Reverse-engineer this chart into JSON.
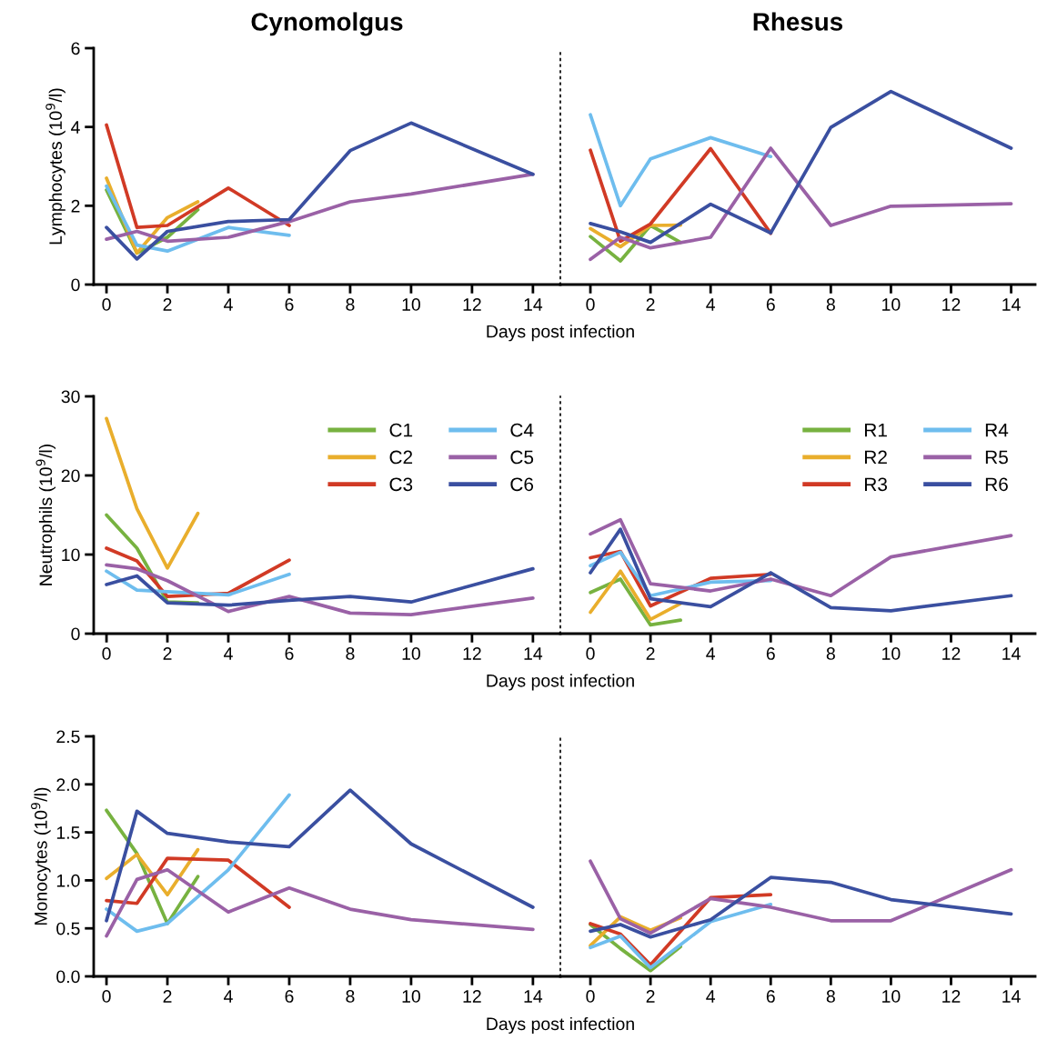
{
  "chart_data": [
    {
      "type": "line",
      "title": "Cynomolgus",
      "ylabel": "Lymphocytes (10$^{9}$/l)",
      "xlabel": "Days post infection",
      "xlim": [
        -0.42,
        14.9
      ],
      "xticks": [
        0,
        2,
        4,
        6,
        8,
        10,
        12,
        14
      ],
      "ylim": [
        0,
        6
      ],
      "yticks": [
        0,
        2,
        4,
        6
      ],
      "grid": false,
      "legend": false,
      "marker": "none",
      "line_style": "solid",
      "series": [
        {
          "color": "#77b240",
          "x": [
            0,
            1,
            2,
            3
          ],
          "values": [
            2.4,
            0.8,
            1.2,
            1.9
          ]
        },
        {
          "color": "#e9ae2c",
          "x": [
            0,
            1,
            2,
            3
          ],
          "values": [
            2.7,
            0.8,
            1.7,
            2.1
          ]
        },
        {
          "color": "#d13a25",
          "x": [
            0,
            1,
            2,
            4,
            6
          ],
          "values": [
            4.05,
            1.45,
            1.5,
            2.45,
            1.5
          ]
        },
        {
          "color": "#6ebdee",
          "x": [
            0,
            1,
            2,
            4,
            6
          ],
          "values": [
            2.5,
            1.0,
            0.85,
            1.45,
            1.25
          ]
        },
        {
          "color": "#9a61a6",
          "x": [
            0,
            1,
            2,
            4,
            6,
            8,
            10,
            14
          ],
          "values": [
            1.15,
            1.35,
            1.1,
            1.2,
            1.6,
            2.1,
            2.3,
            2.8
          ]
        },
        {
          "color": "#3a4fa0",
          "x": [
            0,
            1,
            2,
            4,
            6,
            8,
            10,
            14
          ],
          "values": [
            1.45,
            0.65,
            1.35,
            1.6,
            1.65,
            3.4,
            4.1,
            2.8
          ]
        }
      ]
    },
    {
      "type": "line",
      "title": "Rhesus",
      "xlim": [
        -1.0,
        14.8
      ],
      "xticks": [
        0,
        2,
        4,
        6,
        8,
        10,
        12,
        14
      ],
      "ylim": [
        0,
        6
      ],
      "tick_labels": "x",
      "grid": false,
      "legend": false,
      "marker": "none",
      "line_style": "solid",
      "series": [
        {
          "color": "#77b240",
          "x": [
            0,
            1,
            2,
            3
          ],
          "values": [
            1.22,
            0.6,
            1.5,
            1.07
          ]
        },
        {
          "color": "#e9ae2c",
          "x": [
            0,
            1,
            2,
            3
          ],
          "values": [
            1.42,
            0.96,
            1.5,
            1.51
          ]
        },
        {
          "color": "#d13a25",
          "x": [
            0,
            1,
            2,
            4,
            6
          ],
          "values": [
            3.41,
            1.1,
            1.54,
            3.45,
            1.3
          ]
        },
        {
          "color": "#6ebdee",
          "x": [
            0,
            1,
            2,
            4,
            6
          ],
          "values": [
            4.31,
            2.0,
            3.19,
            3.73,
            3.25
          ]
        },
        {
          "color": "#9a61a6",
          "x": [
            0,
            1,
            2,
            4,
            6,
            8,
            10,
            14
          ],
          "values": [
            0.64,
            1.2,
            0.93,
            1.2,
            3.46,
            1.5,
            1.99,
            2.05
          ]
        },
        {
          "color": "#3a4fa0",
          "x": [
            0,
            1,
            2,
            4,
            6,
            8,
            10,
            14
          ],
          "values": [
            1.55,
            1.34,
            1.07,
            2.04,
            1.31,
            3.99,
            4.9,
            3.46
          ]
        }
      ]
    },
    {
      "type": "line",
      "ylabel": "Neutrophils (10$^{9}$/l)",
      "xlabel": "Days post infection",
      "xlim": [
        -0.42,
        14.9
      ],
      "xticks": [
        0,
        2,
        4,
        6,
        8,
        10,
        12,
        14
      ],
      "ylim": [
        0,
        30
      ],
      "yticks": [
        0,
        10,
        20,
        30
      ],
      "grid": false,
      "legend": "top right",
      "marker": "none",
      "line_style": "solid",
      "series": [
        {
          "name": "C1",
          "color": "#77b240",
          "x": [
            0,
            1,
            2,
            3
          ],
          "values": [
            15.0,
            10.8,
            4.0,
            3.9
          ]
        },
        {
          "name": "C2",
          "color": "#e9ae2c",
          "x": [
            0,
            1,
            2,
            3
          ],
          "values": [
            27.2,
            15.8,
            8.3,
            15.2
          ]
        },
        {
          "name": "C3",
          "color": "#d13a25",
          "x": [
            0,
            1,
            2,
            4,
            6
          ],
          "values": [
            10.8,
            9.2,
            4.7,
            5.1,
            9.3
          ]
        },
        {
          "name": "C4",
          "color": "#6ebdee",
          "x": [
            0,
            1,
            2,
            4,
            6
          ],
          "values": [
            7.9,
            5.5,
            5.3,
            4.9,
            7.5
          ]
        },
        {
          "name": "C5",
          "color": "#9a61a6",
          "x": [
            0,
            1,
            2,
            4,
            6,
            8,
            10,
            14
          ],
          "values": [
            8.7,
            8.2,
            6.7,
            2.8,
            4.7,
            2.6,
            2.4,
            4.5
          ]
        },
        {
          "name": "C6",
          "color": "#3a4fa0",
          "x": [
            0,
            1,
            2,
            4,
            6,
            8,
            10,
            14
          ],
          "values": [
            6.2,
            7.3,
            3.9,
            3.6,
            4.2,
            4.7,
            4.0,
            8.2
          ]
        }
      ]
    },
    {
      "type": "line",
      "xlim": [
        -1.0,
        14.8
      ],
      "xticks": [
        0,
        2,
        4,
        6,
        8,
        10,
        12,
        14
      ],
      "ylim": [
        0,
        30
      ],
      "tick_labels": "x",
      "grid": false,
      "legend": "top right",
      "marker": "none",
      "line_style": "solid",
      "series": [
        {
          "name": "R1",
          "color": "#77b240",
          "x": [
            0,
            1,
            2,
            3
          ],
          "values": [
            5.2,
            6.9,
            1.1,
            1.7
          ]
        },
        {
          "name": "R2",
          "color": "#e9ae2c",
          "x": [
            0,
            1,
            2,
            3
          ],
          "values": [
            2.7,
            7.9,
            1.8,
            3.8
          ]
        },
        {
          "name": "R3",
          "color": "#d13a25",
          "x": [
            0,
            1,
            2,
            4,
            6
          ],
          "values": [
            9.6,
            10.4,
            3.5,
            7.0,
            7.5
          ]
        },
        {
          "name": "R4",
          "color": "#6ebdee",
          "x": [
            0,
            1,
            2,
            4,
            6
          ],
          "values": [
            8.6,
            10.3,
            4.8,
            6.5,
            6.7
          ]
        },
        {
          "name": "R5",
          "color": "#9a61a6",
          "x": [
            0,
            1,
            2,
            4,
            6,
            8,
            10,
            14
          ],
          "values": [
            12.6,
            14.4,
            6.3,
            5.4,
            6.9,
            4.8,
            9.7,
            12.4
          ]
        },
        {
          "name": "R6",
          "color": "#3a4fa0",
          "x": [
            0,
            1,
            2,
            4,
            6,
            8,
            10,
            14
          ],
          "values": [
            7.7,
            13.2,
            4.4,
            3.4,
            7.7,
            3.3,
            2.9,
            4.8
          ]
        }
      ]
    },
    {
      "type": "line",
      "ylabel": "Monocytes (10$^{9}$/l)",
      "xlabel": "Days post infection",
      "xlim": [
        -0.42,
        14.9
      ],
      "xticks": [
        0,
        2,
        4,
        6,
        8,
        10,
        12,
        14
      ],
      "ylim": [
        0,
        2.5
      ],
      "yticks": [
        {
          "value": 0,
          "label": "0.0"
        },
        0.5,
        {
          "value": 1,
          "label": "1.0"
        },
        1.5,
        {
          "value": 2,
          "label": "2.0"
        },
        2.5
      ],
      "grid": false,
      "legend": false,
      "marker": "none",
      "line_style": "solid",
      "series": [
        {
          "color": "#77b240",
          "x": [
            0,
            1,
            2,
            3
          ],
          "values": [
            1.73,
            1.28,
            0.55,
            1.04
          ]
        },
        {
          "color": "#e9ae2c",
          "x": [
            0,
            1,
            2,
            3
          ],
          "values": [
            1.02,
            1.27,
            0.85,
            1.32
          ]
        },
        {
          "color": "#d13a25",
          "x": [
            0,
            1,
            2,
            4,
            6
          ],
          "values": [
            0.79,
            0.76,
            1.23,
            1.21,
            0.72
          ]
        },
        {
          "color": "#6ebdee",
          "x": [
            0,
            1,
            2,
            4,
            6
          ],
          "values": [
            0.7,
            0.47,
            0.55,
            1.11,
            1.89
          ]
        },
        {
          "color": "#9a61a6",
          "x": [
            0,
            1,
            2,
            4,
            6,
            8,
            10,
            14
          ],
          "values": [
            0.42,
            1.01,
            1.11,
            0.67,
            0.92,
            0.7,
            0.59,
            0.49
          ]
        },
        {
          "color": "#3a4fa0",
          "x": [
            0,
            1,
            2,
            4,
            6,
            8,
            10,
            14
          ],
          "values": [
            0.58,
            1.72,
            1.49,
            1.4,
            1.35,
            1.94,
            1.38,
            0.72
          ]
        }
      ]
    },
    {
      "type": "line",
      "xlim": [
        -1.0,
        14.8
      ],
      "xticks": [
        0,
        2,
        4,
        6,
        8,
        10,
        12,
        14
      ],
      "ylim": [
        0,
        2.5
      ],
      "tick_labels": "x",
      "grid": false,
      "legend": false,
      "marker": "none",
      "line_style": "solid",
      "series": [
        {
          "color": "#77b240",
          "x": [
            0,
            1,
            2,
            3
          ],
          "values": [
            0.54,
            0.29,
            0.06,
            0.31
          ]
        },
        {
          "color": "#e9ae2c",
          "x": [
            0,
            1,
            2,
            3
          ],
          "values": [
            0.32,
            0.62,
            0.48,
            0.61
          ]
        },
        {
          "color": "#d13a25",
          "x": [
            0,
            1,
            2,
            4,
            6
          ],
          "values": [
            0.55,
            0.44,
            0.12,
            0.82,
            0.85
          ]
        },
        {
          "color": "#6ebdee",
          "x": [
            0,
            1,
            2,
            4,
            6
          ],
          "values": [
            0.3,
            0.42,
            0.09,
            0.57,
            0.75
          ]
        },
        {
          "color": "#9a61a6",
          "x": [
            0,
            1,
            2,
            4,
            6,
            8,
            10,
            14
          ],
          "values": [
            1.2,
            0.6,
            0.45,
            0.81,
            0.72,
            0.58,
            0.58,
            1.11
          ]
        },
        {
          "color": "#3a4fa0",
          "x": [
            0,
            1,
            2,
            4,
            6,
            8,
            10,
            14
          ],
          "values": [
            0.47,
            0.54,
            0.41,
            0.59,
            1.03,
            0.98,
            0.8,
            0.65
          ]
        }
      ]
    }
  ]
}
